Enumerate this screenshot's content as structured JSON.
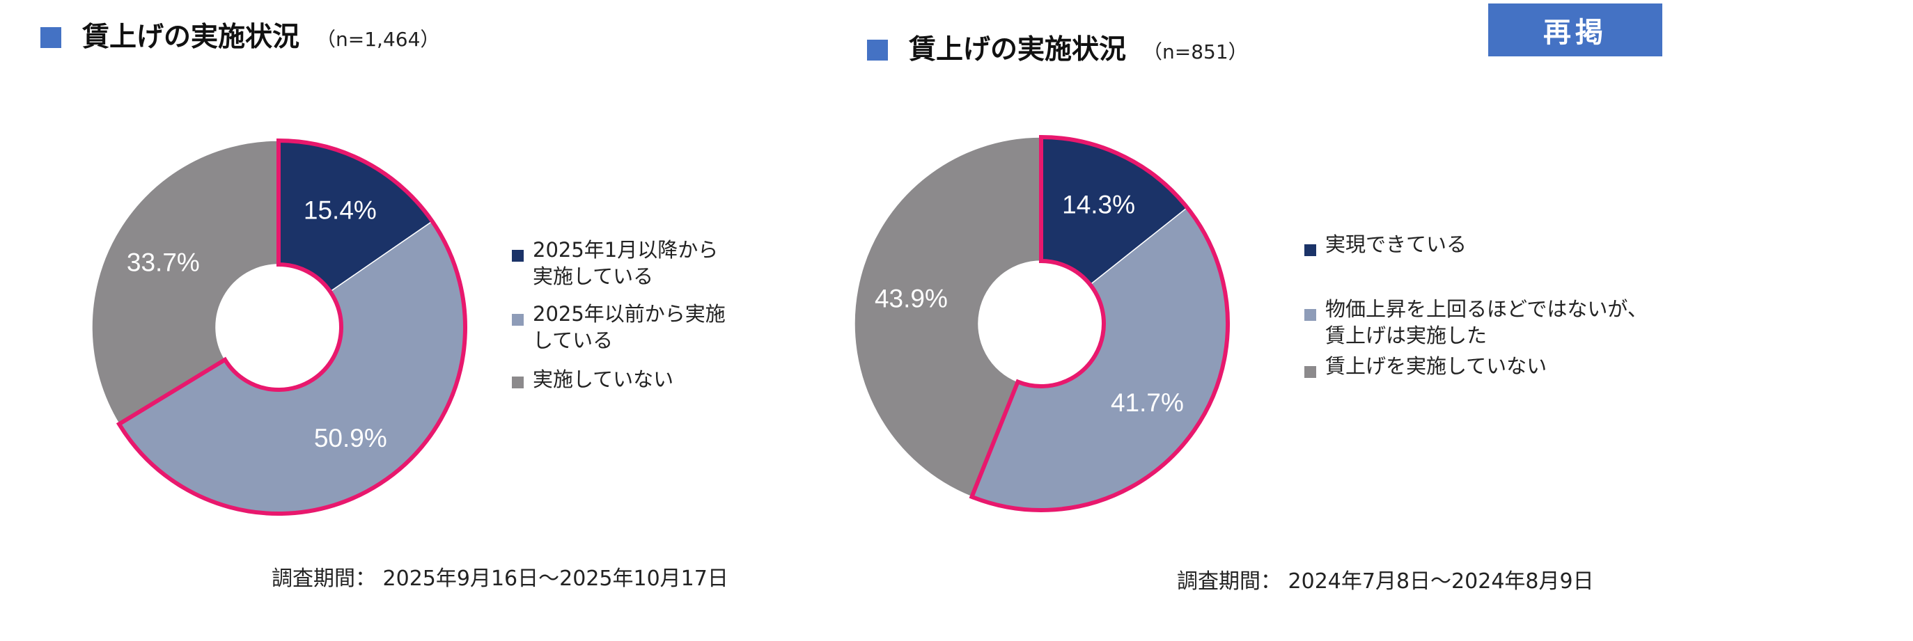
{
  "panels": [
    {
      "title": "賃上げの実施状況",
      "n": "（n=1,464）",
      "period": "調査期間： 2025年9月16日～2025年10月17日",
      "legend": [
        {
          "text": "2025年1月以降から\n実施している",
          "color": "#1B3368"
        },
        {
          "text": "2025年以前から実施\nしている",
          "color": "#8E9CB8"
        },
        {
          "text": "実施していない",
          "color": "#8C8A8C"
        }
      ]
    },
    {
      "title": "賃上げの実施状況",
      "n": "（n=851）",
      "period": "調査期間： 2024年7月8日～2024年8月9日",
      "badge": "再掲",
      "legend": [
        {
          "text": "実現できている",
          "color": "#1B3368"
        },
        {
          "text": "物価上昇を上回るほどではないが、\n賃上げは実施した",
          "color": "#8E9CB8"
        },
        {
          "text": "賃上げを実施していない",
          "color": "#8C8A8C"
        }
      ]
    }
  ],
  "chart_data": [
    {
      "type": "pie",
      "title": "賃上げの実施状況",
      "categories": [
        "2025年1月以降から実施している",
        "2025年以前から実施している",
        "実施していない"
      ],
      "values": [
        15.4,
        50.9,
        33.7
      ],
      "value_labels": [
        "15.4%",
        "50.9%",
        "33.7%"
      ],
      "colors": [
        "#1B3368",
        "#8E9CB8",
        "#8C8A8C"
      ],
      "highlight_color": "#E8186D",
      "highlighted_slices": [
        0,
        1
      ],
      "legend_position": "right"
    },
    {
      "type": "pie",
      "title": "賃上げの実施状況",
      "categories": [
        "実現できている",
        "物価上昇を上回るほどではないが、賃上げは実施した",
        "賃上げを実施していない"
      ],
      "values": [
        14.3,
        41.7,
        43.9
      ],
      "value_labels": [
        "14.3%",
        "41.7%",
        "43.9%"
      ],
      "colors": [
        "#1B3368",
        "#8E9CB8",
        "#8C8A8C"
      ],
      "highlight_color": "#E8186D",
      "highlighted_slices": [
        0,
        1
      ],
      "legend_position": "right"
    }
  ]
}
